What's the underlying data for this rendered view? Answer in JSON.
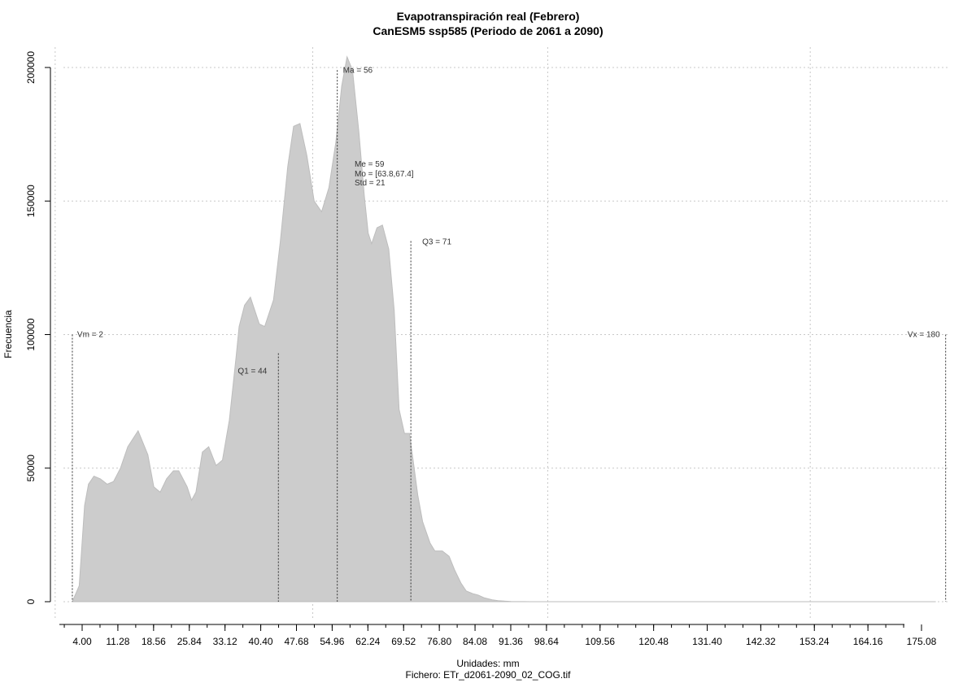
{
  "chart_data": {
    "type": "area",
    "title": "Evapotranspiración real (Febrero)",
    "subtitle": "CanESM5 ssp585 (Periodo de 2061 a 2090)",
    "xlabel": "Unidades: mm",
    "ylabel": "Frecuencia",
    "caption": "Fichero: ETr_d2061-2090_02_COG.tif",
    "xlim": [
      -2,
      182
    ],
    "ylim": [
      0,
      210000
    ],
    "grid": true,
    "x_ticks": [
      "4.00",
      "11.28",
      "18.56",
      "25.84",
      "33.12",
      "40.40",
      "47.68",
      "54.96",
      "62.24",
      "69.52",
      "76.80",
      "84.08",
      "91.36",
      "98.64",
      "109.56",
      "120.48",
      "131.40",
      "142.32",
      "153.24",
      "164.16",
      "175.08"
    ],
    "x_tick_values": [
      4.0,
      11.28,
      18.56,
      25.84,
      33.12,
      40.4,
      47.68,
      54.96,
      62.24,
      69.52,
      76.8,
      84.08,
      91.36,
      98.64,
      109.56,
      120.48,
      131.4,
      142.32,
      153.24,
      164.16,
      175.08
    ],
    "y_ticks": [
      "0",
      "50000",
      "100000",
      "150000",
      "200000"
    ],
    "y_tick_values": [
      0,
      50000,
      100000,
      150000,
      200000
    ],
    "x_grid_values": [
      -1.5,
      51,
      98.9,
      152.4
    ],
    "series": [
      {
        "color": "#cccccc",
        "x": [
          2.0,
          3.4,
          4.5,
          5.3,
          6.4,
          7.7,
          9.1,
          10.4,
          11.8,
          13.3,
          15.4,
          17.4,
          18.6,
          19.9,
          21.2,
          22.6,
          23.7,
          25.4,
          26.3,
          27.2,
          28.5,
          29.8,
          31.3,
          32.6,
          34.0,
          35.4,
          36.0,
          37.1,
          38.3,
          40.1,
          41.2,
          43.0,
          44.4,
          45.9,
          47.1,
          48.4,
          49.8,
          51.3,
          52.8,
          54.3,
          55.7,
          56.9,
          58.0,
          59.1,
          60.4,
          61.5,
          62.3,
          63.0,
          64.1,
          65.2,
          66.5,
          67.6,
          68.6,
          69.7,
          70.7,
          71.6,
          72.4,
          73.4,
          74.9,
          75.9,
          77.4,
          78.8,
          79.9,
          81.2,
          82.3,
          83.6,
          84.7,
          85.9,
          87.6,
          88.8,
          90.1,
          91.4,
          92.6,
          94.0,
          95.4,
          97.0,
          99.0,
          101.0,
          104.0,
          107.0,
          110.0,
          115.0,
          120.0,
          125.0,
          130.0,
          140.0,
          150.0,
          160.0,
          170.0,
          178.0
        ],
        "values": [
          0,
          6000,
          36000,
          44000,
          47000,
          46000,
          44000,
          45000,
          50000,
          58000,
          64000,
          55000,
          43000,
          41000,
          46000,
          49000,
          49000,
          43000,
          38000,
          41000,
          56000,
          58000,
          51000,
          53000,
          68000,
          92000,
          103000,
          111000,
          114000,
          104000,
          103000,
          113000,
          135000,
          163000,
          178000,
          179000,
          167000,
          150000,
          146000,
          155000,
          172000,
          193000,
          204000,
          199000,
          176000,
          152000,
          138000,
          134000,
          140000,
          141000,
          132000,
          109000,
          72000,
          63000,
          63000,
          51000,
          40000,
          30000,
          22000,
          19000,
          19000,
          17000,
          12000,
          7000,
          4000,
          3000,
          2500,
          1500,
          700,
          400,
          200,
          80,
          40,
          20,
          10,
          5,
          3,
          2,
          1,
          1,
          1,
          1,
          0,
          0,
          0,
          0,
          0,
          0,
          0,
          0
        ]
      }
    ],
    "vlines": [
      {
        "label": "Vm = 2",
        "x": 2,
        "y_top": 100000
      },
      {
        "label": "Q1 = 44",
        "x": 44,
        "y_top": 93000
      },
      {
        "label": "Ma = 56",
        "x": 56,
        "y_top": 199000
      },
      {
        "label": "Q3 = 71",
        "x": 71,
        "y_top": 135000
      },
      {
        "label": "Vx = 180",
        "x": 180,
        "y_top": 100000
      }
    ],
    "stats_annotations": [
      "Me = 59",
      "Mo = [63.8,67.4]",
      "Std = 21"
    ]
  }
}
